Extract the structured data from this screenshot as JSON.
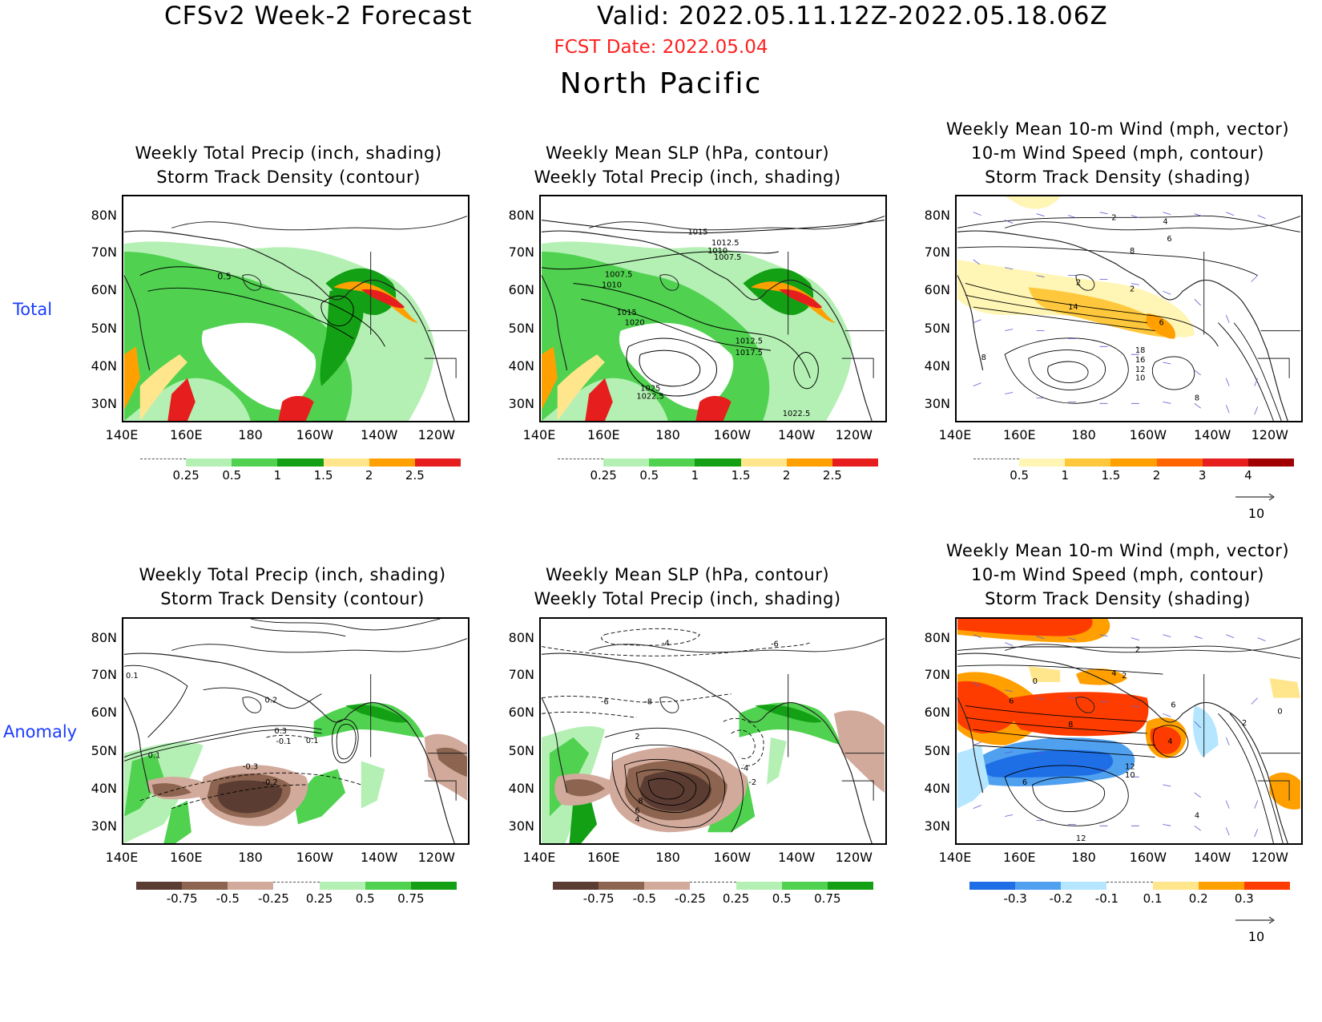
{
  "header": {
    "title_left": "CFSv2 Week-2 Forecast",
    "title_right": "Valid: 2022.05.11.12Z-2022.05.18.06Z",
    "fcst_date": "FCST Date: 2022.05.04",
    "region": "North Pacific"
  },
  "rows": {
    "total": "Total",
    "anomaly": "Anomaly"
  },
  "panel_titles": {
    "precip_storm": [
      "Weekly Total Precip (inch, shading)",
      "Storm Track Density (contour)"
    ],
    "slp_precip": [
      "Weekly Mean SLP (hPa, contour)",
      "Weekly Total Precip (inch, shading)"
    ],
    "wind_storm": [
      "Weekly Mean 10-m Wind (mph, vector)",
      "10-m Wind Speed (mph, contour)",
      "Storm Track Density (shading)"
    ]
  },
  "axes": {
    "lat_labels": [
      "80N",
      "70N",
      "60N",
      "50N",
      "40N",
      "30N"
    ],
    "lon_labels": [
      "140E",
      "160E",
      "180",
      "160W",
      "140W",
      "120W"
    ]
  },
  "colorbars": {
    "precip_total": {
      "labels": [
        "0.25",
        "0.5",
        "1",
        "1.5",
        "2",
        "2.5"
      ],
      "colors": [
        "#ffffff",
        "#b4f0b4",
        "#50d250",
        "#14a014",
        "#ffe68c",
        "#ffa000",
        "#e61e1e"
      ]
    },
    "storm_total": {
      "labels": [
        "0.5",
        "1",
        "1.5",
        "2",
        "3",
        "4"
      ],
      "colors": [
        "#ffffff",
        "#fff5b4",
        "#ffc83c",
        "#ffa000",
        "#ff6400",
        "#e61e1e",
        "#a00000"
      ]
    },
    "precip_anom": {
      "labels": [
        "-0.75",
        "-0.5",
        "-0.25",
        "0.25",
        "0.5",
        "0.75"
      ],
      "colors": [
        "#5a3c32",
        "#8c6450",
        "#d2aa9b",
        "#ffffff",
        "#b4f0b4",
        "#50d250",
        "#14a014"
      ]
    },
    "storm_anom": {
      "labels": [
        "-0.3",
        "-0.2",
        "-0.1",
        "0.1",
        "0.2",
        "0.3"
      ],
      "colors": [
        "#1e6ee6",
        "#50a0f0",
        "#b4e6ff",
        "#ffffff",
        "#ffe68c",
        "#ffa000",
        "#ff3c00"
      ]
    }
  },
  "vector_reference": "10",
  "contour_labels": {
    "total_precip_storm": [
      "0.5"
    ],
    "total_slp": [
      "1015",
      "1012.5",
      "1010",
      "1007.5",
      "1007.5",
      "1010",
      "1015",
      "1020",
      "1012.5",
      "1017.5",
      "1025",
      "1022.5",
      "1022.5"
    ],
    "total_wind": [
      "2",
      "4",
      "6",
      "8",
      "2",
      "2",
      "14",
      "6",
      "18",
      "16",
      "12",
      "10",
      "8",
      "8"
    ],
    "anom_precip_storm": [
      "0.1",
      "0.2",
      "0.3",
      "-0.1",
      "0.1",
      "0.1",
      "-0.3",
      "-0.2"
    ],
    "anom_slp": [
      "-4",
      "-6",
      "-6",
      "-8",
      "2",
      "-4",
      "-2",
      "8",
      "6",
      "4"
    ],
    "anom_wind": [
      "2",
      "0",
      "4",
      "2",
      "6",
      "8",
      "6",
      "2",
      "0",
      "4",
      "12",
      "10",
      "6",
      "4",
      "12"
    ]
  }
}
